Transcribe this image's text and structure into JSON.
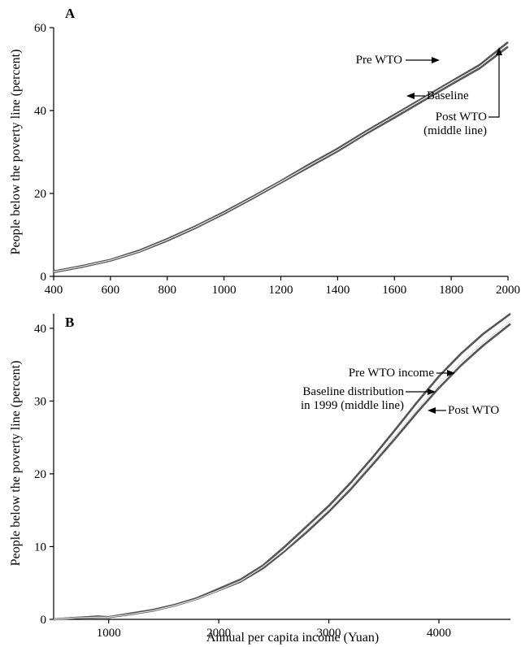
{
  "chart_data": [
    {
      "type": "line",
      "panel_label": "A",
      "xlabel": "",
      "ylabel": "People below the poverty line (percent)",
      "xlim": [
        400,
        2000
      ],
      "ylim": [
        0,
        60
      ],
      "xticks": [
        400,
        600,
        800,
        1000,
        1200,
        1400,
        1600,
        1800,
        2000
      ],
      "yticks": [
        0,
        20,
        40,
        60
      ],
      "grid": false,
      "x": [
        400,
        500,
        600,
        700,
        800,
        900,
        1000,
        1100,
        1200,
        1300,
        1400,
        1500,
        1600,
        1700,
        1800,
        1900,
        2000
      ],
      "series": [
        {
          "name": "Pre WTO",
          "values": [
            1.2,
            2.5,
            4.0,
            6.2,
            9.0,
            12.1,
            15.5,
            19.2,
            23.0,
            27.0,
            30.8,
            35.0,
            39.0,
            43.0,
            47.0,
            51.0,
            56.5
          ]
        },
        {
          "name": "Post WTO",
          "values": [
            1.1,
            2.4,
            3.9,
            6.0,
            8.8,
            11.9,
            15.3,
            19.0,
            22.8,
            26.7,
            30.5,
            34.7,
            38.7,
            42.7,
            46.7,
            50.6,
            56.0
          ]
        },
        {
          "name": "Baseline",
          "values": [
            1.0,
            2.3,
            3.8,
            5.9,
            8.6,
            11.7,
            15.1,
            18.8,
            22.6,
            26.4,
            30.2,
            34.4,
            38.3,
            42.3,
            46.3,
            50.2,
            55.4
          ]
        }
      ],
      "annotations": [
        {
          "text": "Pre WTO"
        },
        {
          "text": "Baseline"
        },
        {
          "text": "Post WTO"
        },
        {
          "text": "(middle line)"
        }
      ]
    },
    {
      "type": "line",
      "panel_label": "B",
      "xlabel": "Annual per capita income (Yuan)",
      "ylabel": "People below the poverty line (percent)",
      "xlim": [
        500,
        4650
      ],
      "ylim": [
        0,
        42
      ],
      "xticks": [
        1000,
        2000,
        3000,
        4000
      ],
      "yticks": [
        0,
        10,
        20,
        30,
        40
      ],
      "grid": false,
      "x": [
        500,
        700,
        900,
        1000,
        1200,
        1400,
        1600,
        1800,
        2000,
        2200,
        2400,
        2600,
        2800,
        3000,
        3200,
        3400,
        3600,
        3800,
        4000,
        4200,
        4400,
        4650
      ],
      "series": [
        {
          "name": "Pre WTO income",
          "values": [
            0.0,
            0.2,
            0.4,
            0.3,
            0.8,
            1.3,
            2.0,
            2.9,
            4.2,
            5.5,
            7.4,
            10.0,
            12.8,
            15.6,
            18.8,
            22.3,
            26.0,
            29.8,
            33.4,
            36.5,
            39.2,
            42.0
          ]
        },
        {
          "name": "Baseline distribution in 1999",
          "values": [
            0.0,
            0.2,
            0.3,
            0.3,
            0.7,
            1.2,
            1.9,
            2.8,
            4.0,
            5.3,
            7.2,
            9.6,
            12.3,
            15.1,
            18.2,
            21.7,
            25.2,
            28.8,
            32.3,
            35.4,
            38.0,
            41.0
          ]
        },
        {
          "name": "Post WTO",
          "values": [
            0.0,
            0.2,
            0.3,
            0.3,
            0.7,
            1.2,
            1.9,
            2.8,
            4.0,
            5.2,
            7.0,
            9.4,
            12.0,
            14.8,
            17.9,
            21.3,
            24.8,
            28.4,
            31.8,
            34.9,
            37.6,
            40.6
          ]
        }
      ],
      "annotations": [
        {
          "text": "Pre WTO income"
        },
        {
          "text": "Baseline distribution"
        },
        {
          "text": "in 1999 (middle line)"
        },
        {
          "text": "Post WTO"
        }
      ]
    }
  ]
}
